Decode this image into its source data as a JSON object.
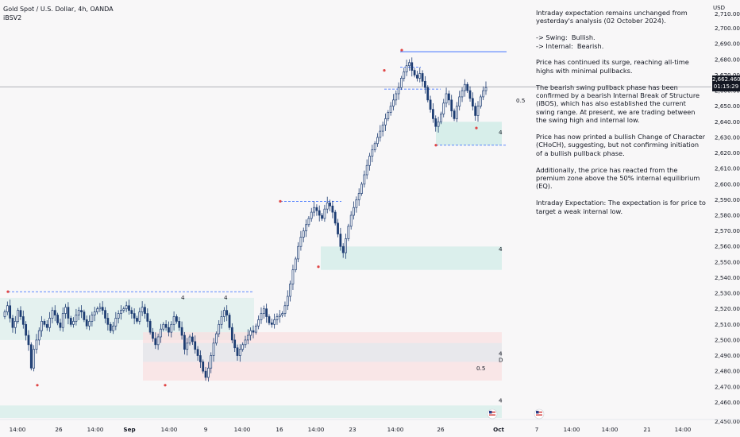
{
  "header": {
    "title": "Gold Spot / U.S. Dollar, 4h, OANDA",
    "indicator": "iBSV2"
  },
  "currency": "USD",
  "last_price": {
    "value": "2,662.460",
    "countdown": "01:15:29"
  },
  "analysis": [
    "Intraday expectation remains unchanged from yesterday's analysis (02 October 2024).",
    "-> Swing:  Bullish.\n-> Internal:  Bearish.",
    "Price has continued its surge, reaching all-time highs with minimal pullbacks.",
    "The bearish swing pullback phase has been confirmed by a bearish Internal Break of Structure (iBOS), which has also established the current swing range. At present, we are trading between the swing high and internal low.",
    "Price has now printed a bullish Change of Character (CHoCH), suggesting, but not confirming initiation of a bullish pullback phase.",
    "Additionally, the price has reacted from the premium zone above the 50% internal equilibrium (EQ).",
    "Intraday Expectation: The expectation is for price to target a weak internal low."
  ],
  "annotations": {
    "eq_label_top": "0.5",
    "eq_label_bottom": "0.5",
    "zone_marker": "4",
    "zone_marker_d": "D"
  },
  "colors": {
    "bull": "#1d3c72",
    "bear": "#1d3c72",
    "wick": "#1d3c72",
    "demand_zone": "#d3ece8",
    "supply_zone": "#f9dedf",
    "line": "#2962ff",
    "marker": "#e04545",
    "price_line": "#9598a1"
  },
  "chart_data": {
    "type": "candlestick",
    "title": "Gold Spot / U.S. Dollar, 4h, OANDA",
    "y_axis": {
      "range": [
        2450,
        2710
      ],
      "ticks": [
        2460,
        2470,
        2480,
        2490,
        2500,
        2510,
        2520,
        2530,
        2540,
        2550,
        2560,
        2570,
        2580,
        2590,
        2600,
        2610,
        2620,
        2630,
        2640,
        2650,
        2660,
        2670,
        2680,
        2690,
        2700
      ],
      "tick_labels": [
        "2,460.000",
        "2,470.000",
        "2,480.000",
        "2,490.000",
        "2,500.000",
        "2,510.000",
        "2,520.000",
        "2,530.000",
        "2,540.000",
        "2,550.000",
        "2,560.000",
        "2,570.000",
        "2,580.000",
        "2,590.000",
        "2,600.000",
        "2,610.000",
        "2,620.000",
        "2,630.000",
        "2,640.000",
        "2,650.000",
        "2,660.000",
        "2,670.000",
        "2,680.000",
        "2,690.000",
        "2,700.000"
      ],
      "partial_labels": [
        "2,710.000",
        "2,450.000"
      ]
    },
    "x_axis": {
      "tick_labels": [
        "14:00",
        "26",
        "14:00",
        "Sep",
        "14:00",
        "9",
        "14:00",
        "16",
        "14:00",
        "23",
        "14:00",
        "26",
        "Oct",
        "7",
        "14:00",
        "14:00",
        "21",
        "14:00"
      ]
    },
    "last_price": 2662.46,
    "close_series": [
      2518,
      2522,
      2514,
      2508,
      2512,
      2519,
      2515,
      2510,
      2503,
      2497,
      2482,
      2494,
      2500,
      2506,
      2512,
      2510,
      2508,
      2514,
      2519,
      2516,
      2511,
      2508,
      2517,
      2521,
      2514,
      2510,
      2512,
      2516,
      2519,
      2518,
      2513,
      2509,
      2512,
      2516,
      2518,
      2520,
      2521,
      2519,
      2514,
      2510,
      2506,
      2509,
      2514,
      2517,
      2519,
      2520,
      2522,
      2519,
      2517,
      2514,
      2512,
      2518,
      2521,
      2517,
      2512,
      2505,
      2501,
      2497,
      2502,
      2507,
      2510,
      2508,
      2505,
      2510,
      2515,
      2512,
      2508,
      2503,
      2494,
      2498,
      2502,
      2499,
      2494,
      2490,
      2486,
      2480,
      2476,
      2482,
      2490,
      2498,
      2504,
      2510,
      2515,
      2519,
      2516,
      2508,
      2500,
      2495,
      2490,
      2494,
      2497,
      2500,
      2503,
      2506,
      2505,
      2509,
      2513,
      2517,
      2520,
      2515,
      2511,
      2510,
      2513,
      2515,
      2516,
      2517,
      2522,
      2528,
      2536,
      2545,
      2552,
      2560,
      2566,
      2570,
      2574,
      2578,
      2582,
      2585,
      2583,
      2580,
      2578,
      2584,
      2588,
      2586,
      2582,
      2575,
      2568,
      2560,
      2556,
      2565,
      2573,
      2580,
      2585,
      2590,
      2594,
      2600,
      2606,
      2612,
      2618,
      2622,
      2626,
      2630,
      2634,
      2638,
      2642,
      2646,
      2650,
      2654,
      2658,
      2662,
      2668,
      2672,
      2676,
      2678,
      2673,
      2670,
      2668,
      2671,
      2666,
      2662,
      2654,
      2648,
      2642,
      2637,
      2640,
      2645,
      2652,
      2658,
      2654,
      2647,
      2642,
      2650,
      2656,
      2660,
      2664,
      2660,
      2655,
      2650,
      2644,
      2650,
      2656,
      2660,
      2662
    ],
    "swing_high": 2685,
    "internal_low": 2625,
    "eq_level": 2654
  }
}
